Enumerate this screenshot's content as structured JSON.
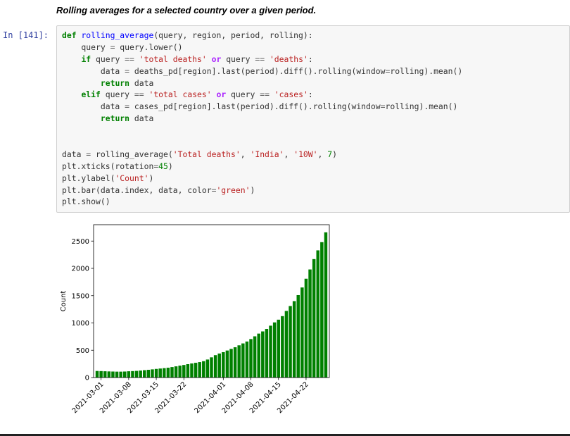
{
  "markdown_heading": "Rolling averages for a selected country over a given period.",
  "cell": {
    "prompt": "In [141]:",
    "code_lines": [
      [
        {
          "t": "def",
          "c": "kw"
        },
        {
          "t": " "
        },
        {
          "t": "rolling_average",
          "c": "fn"
        },
        {
          "t": "(query, region, period, rolling):"
        }
      ],
      [
        {
          "t": "    query "
        },
        {
          "t": "=",
          "c": "op"
        },
        {
          "t": " query.lower()"
        }
      ],
      [
        {
          "t": "    "
        },
        {
          "t": "if",
          "c": "kw"
        },
        {
          "t": " query "
        },
        {
          "t": "==",
          "c": "op"
        },
        {
          "t": " "
        },
        {
          "t": "'total deaths'",
          "c": "str"
        },
        {
          "t": " "
        },
        {
          "t": "or",
          "c": "kw-ow"
        },
        {
          "t": " query "
        },
        {
          "t": "==",
          "c": "op"
        },
        {
          "t": " "
        },
        {
          "t": "'deaths'",
          "c": "str"
        },
        {
          "t": ":"
        }
      ],
      [
        {
          "t": "        data "
        },
        {
          "t": "=",
          "c": "op"
        },
        {
          "t": " deaths_pd[region].last(period).diff().rolling(window"
        },
        {
          "t": "=",
          "c": "op"
        },
        {
          "t": "rolling).mean()"
        }
      ],
      [
        {
          "t": "        "
        },
        {
          "t": "return",
          "c": "kw"
        },
        {
          "t": " data"
        }
      ],
      [
        {
          "t": "    "
        },
        {
          "t": "elif",
          "c": "kw"
        },
        {
          "t": " query "
        },
        {
          "t": "==",
          "c": "op"
        },
        {
          "t": " "
        },
        {
          "t": "'total cases'",
          "c": "str"
        },
        {
          "t": " "
        },
        {
          "t": "or",
          "c": "kw-ow"
        },
        {
          "t": " query "
        },
        {
          "t": "==",
          "c": "op"
        },
        {
          "t": " "
        },
        {
          "t": "'cases'",
          "c": "str"
        },
        {
          "t": ":"
        }
      ],
      [
        {
          "t": "        data "
        },
        {
          "t": "=",
          "c": "op"
        },
        {
          "t": " cases_pd[region].last(period).diff().rolling(window"
        },
        {
          "t": "=",
          "c": "op"
        },
        {
          "t": "rolling).mean()"
        }
      ],
      [
        {
          "t": "        "
        },
        {
          "t": "return",
          "c": "kw"
        },
        {
          "t": " data"
        }
      ],
      [],
      [],
      [
        {
          "t": "data "
        },
        {
          "t": "=",
          "c": "op"
        },
        {
          "t": " rolling_average("
        },
        {
          "t": "'Total deaths'",
          "c": "str"
        },
        {
          "t": ", "
        },
        {
          "t": "'India'",
          "c": "str"
        },
        {
          "t": ", "
        },
        {
          "t": "'10W'",
          "c": "str"
        },
        {
          "t": ", "
        },
        {
          "t": "7",
          "c": "num"
        },
        {
          "t": ")"
        }
      ],
      [
        {
          "t": "plt.xticks(rotation"
        },
        {
          "t": "=",
          "c": "op"
        },
        {
          "t": "45",
          "c": "num"
        },
        {
          "t": ")"
        }
      ],
      [
        {
          "t": "plt.ylabel("
        },
        {
          "t": "'Count'",
          "c": "str"
        },
        {
          "t": ")"
        }
      ],
      [
        {
          "t": "plt.bar(data.index, data, color"
        },
        {
          "t": "=",
          "c": "op"
        },
        {
          "t": "'green'",
          "c": "str"
        },
        {
          "t": ")"
        }
      ],
      [
        {
          "t": "plt.show()"
        }
      ]
    ]
  },
  "chart_data": {
    "type": "bar",
    "ylabel": "Count",
    "xlabel": "",
    "title": "",
    "bar_color": "#008000",
    "ylim": [
      0,
      2800
    ],
    "yticks": [
      0,
      500,
      1000,
      1500,
      2000,
      2500
    ],
    "xticks": [
      "2021-03-01",
      "2021-03-08",
      "2021-03-15",
      "2021-03-22",
      "2021-04-01",
      "2021-04-08",
      "2021-04-15",
      "2021-04-22"
    ],
    "start_date": "2021-02-28",
    "values": [
      120,
      118,
      115,
      112,
      110,
      108,
      108,
      110,
      115,
      118,
      122,
      128,
      135,
      142,
      150,
      158,
      165,
      172,
      180,
      192,
      205,
      218,
      230,
      245,
      258,
      270,
      283,
      300,
      330,
      370,
      410,
      440,
      465,
      495,
      525,
      555,
      590,
      625,
      660,
      705,
      755,
      805,
      845,
      890,
      950,
      1010,
      1060,
      1125,
      1220,
      1310,
      1400,
      1510,
      1650,
      1810,
      1980,
      2170,
      2330,
      2480,
      2660
    ]
  }
}
